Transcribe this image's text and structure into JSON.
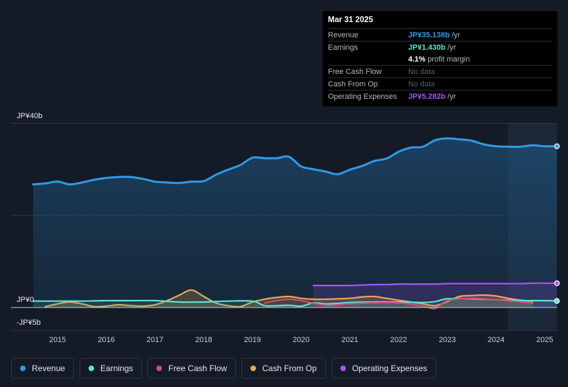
{
  "tooltip": {
    "date": "Mar 31 2025",
    "rows": [
      {
        "label": "Revenue",
        "value": "JP¥35.138b",
        "unit": "/yr",
        "color": "#2e9be8"
      },
      {
        "label": "Earnings",
        "value": "JP¥1.430b",
        "unit": "/yr",
        "color": "#5fe3d3"
      },
      {
        "label": "",
        "value": "4.1%",
        "unit": "profit margin",
        "color": "#ffffff"
      },
      {
        "label": "Free Cash Flow",
        "nodata": "No data"
      },
      {
        "label": "Cash From Op",
        "nodata": "No data"
      },
      {
        "label": "Operating Expenses",
        "value": "JP¥5.282b",
        "unit": "/yr",
        "color": "#a855f7"
      }
    ]
  },
  "legend": [
    {
      "label": "Revenue",
      "color": "#2e9be8"
    },
    {
      "label": "Earnings",
      "color": "#5fe3d3"
    },
    {
      "label": "Free Cash Flow",
      "color": "#d6477c"
    },
    {
      "label": "Cash From Op",
      "color": "#e8a957"
    },
    {
      "label": "Operating Expenses",
      "color": "#a855f7"
    }
  ],
  "chart_data": {
    "type": "line",
    "title": "",
    "ylim": [
      -5,
      40
    ],
    "y_tick_labels": [
      "JP¥40b",
      "JP¥0",
      "-JP¥5b"
    ],
    "x_tick_labels": [
      "2015",
      "2016",
      "2017",
      "2018",
      "2019",
      "2020",
      "2021",
      "2022",
      "2023",
      "2024",
      "2025"
    ],
    "x_range": [
      2014.5,
      2025.25
    ],
    "forecast_start": 2024.25,
    "series": [
      {
        "name": "Revenue",
        "color": "#2e9be8",
        "fill": true,
        "x": [
          2014.5,
          2014.75,
          2015.0,
          2015.25,
          2015.5,
          2015.75,
          2016.0,
          2016.25,
          2016.5,
          2016.75,
          2017.0,
          2017.25,
          2017.5,
          2017.75,
          2018.0,
          2018.25,
          2018.5,
          2018.75,
          2019.0,
          2019.25,
          2019.5,
          2019.75,
          2020.0,
          2020.25,
          2020.5,
          2020.75,
          2021.0,
          2021.25,
          2021.5,
          2021.75,
          2022.0,
          2022.25,
          2022.5,
          2022.75,
          2023.0,
          2023.25,
          2023.5,
          2023.75,
          2024.0,
          2024.25,
          2024.5,
          2024.75,
          2025.0,
          2025.25
        ],
        "values": [
          26.8,
          27.0,
          27.4,
          26.8,
          27.2,
          27.8,
          28.2,
          28.4,
          28.4,
          28.0,
          27.4,
          27.2,
          27.1,
          27.4,
          27.5,
          28.9,
          30.0,
          31.0,
          32.6,
          32.5,
          32.5,
          32.8,
          30.7,
          30.1,
          29.6,
          29.0,
          30.0,
          30.8,
          31.9,
          32.4,
          33.9,
          34.8,
          35.0,
          36.4,
          36.8,
          36.6,
          36.3,
          35.5,
          35.1,
          35.0,
          35.0,
          35.3,
          35.1,
          35.1
        ]
      },
      {
        "name": "Earnings",
        "color": "#5fe3d3",
        "fill": true,
        "x": [
          2014.5,
          2015.0,
          2015.5,
          2016.0,
          2016.5,
          2017.0,
          2017.5,
          2018.0,
          2018.5,
          2019.0,
          2019.25,
          2019.5,
          2019.75,
          2020.0,
          2020.25,
          2020.5,
          2020.75,
          2021.0,
          2021.5,
          2022.0,
          2022.5,
          2022.75,
          2023.0,
          2023.5,
          2024.0,
          2024.5,
          2025.0,
          2025.25
        ],
        "values": [
          1.4,
          1.4,
          1.4,
          1.5,
          1.5,
          1.5,
          1.2,
          1.2,
          1.4,
          1.4,
          0.4,
          0.4,
          0.5,
          0.3,
          1.0,
          0.8,
          0.9,
          1.1,
          1.2,
          1.2,
          1.1,
          1.3,
          1.9,
          1.9,
          1.7,
          1.5,
          1.5,
          1.43
        ]
      },
      {
        "name": "Free Cash Flow",
        "color": "#d6477c",
        "fill": false,
        "x": [
          2019.25,
          2019.5,
          2019.75,
          2020.0,
          2020.5,
          2021.0,
          2021.5,
          2022.0,
          2022.5,
          2022.75,
          2023.0,
          2023.5,
          2024.0,
          2024.5,
          2024.75
        ],
        "values": [
          1.0,
          1.5,
          1.8,
          1.5,
          0.5,
          0.8,
          1.0,
          1.0,
          0.3,
          -0.2,
          1.5,
          2.0,
          1.7,
          1.2,
          0.9
        ]
      },
      {
        "name": "Cash From Op",
        "color": "#e8a957",
        "fill": true,
        "x": [
          2014.75,
          2015.0,
          2015.25,
          2015.5,
          2015.75,
          2016.0,
          2016.25,
          2016.5,
          2016.75,
          2017.0,
          2017.25,
          2017.5,
          2017.75,
          2018.0,
          2018.25,
          2018.5,
          2018.75,
          2019.0,
          2019.25,
          2019.5,
          2019.75,
          2020.0,
          2020.25,
          2020.5,
          2020.75,
          2021.0,
          2021.25,
          2021.5,
          2021.75,
          2022.0,
          2022.25,
          2022.5,
          2022.75,
          2023.0,
          2023.25,
          2023.5,
          2023.75,
          2024.0,
          2024.25,
          2024.5,
          2024.75
        ],
        "values": [
          0.2,
          0.8,
          1.2,
          0.8,
          0.2,
          0.3,
          0.6,
          0.4,
          0.3,
          0.6,
          1.5,
          2.7,
          3.8,
          2.4,
          1.0,
          0.4,
          0.2,
          1.2,
          1.8,
          2.2,
          2.4,
          2.0,
          1.8,
          1.8,
          1.9,
          2.0,
          2.3,
          2.4,
          2.0,
          1.6,
          1.2,
          0.8,
          0.4,
          1.3,
          2.4,
          2.6,
          2.7,
          2.5,
          2.0,
          1.6,
          1.3
        ]
      },
      {
        "name": "Operating Expenses",
        "color": "#a855f7",
        "fill": true,
        "x": [
          2020.25,
          2020.5,
          2020.75,
          2021.0,
          2021.25,
          2021.5,
          2021.75,
          2022.0,
          2022.25,
          2022.5,
          2022.75,
          2023.0,
          2023.25,
          2023.5,
          2023.75,
          2024.0,
          2024.25,
          2024.5,
          2024.75,
          2025.0,
          2025.25
        ],
        "values": [
          4.8,
          4.8,
          4.8,
          4.8,
          4.9,
          5.0,
          5.0,
          5.1,
          5.1,
          5.1,
          5.1,
          5.2,
          5.2,
          5.2,
          5.2,
          5.2,
          5.2,
          5.2,
          5.3,
          5.3,
          5.282
        ]
      }
    ]
  }
}
